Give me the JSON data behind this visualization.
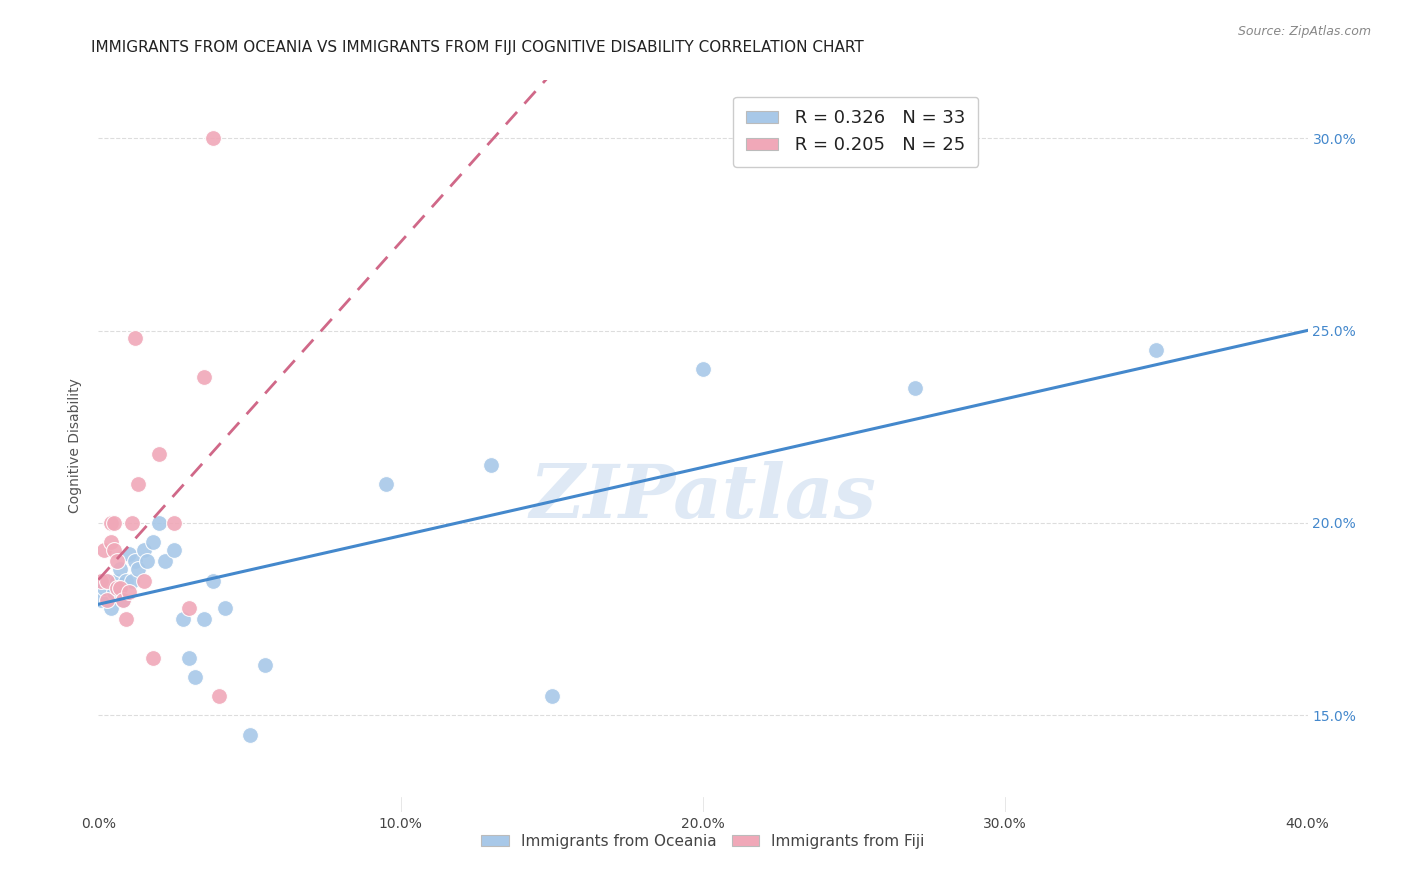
{
  "title": "IMMIGRANTS FROM OCEANIA VS IMMIGRANTS FROM FIJI COGNITIVE DISABILITY CORRELATION CHART",
  "source": "Source: ZipAtlas.com",
  "ylabel": "Cognitive Disability",
  "xlim": [
    0.0,
    0.4
  ],
  "ylim": [
    0.125,
    0.315
  ],
  "yticks": [
    0.15,
    0.2,
    0.25,
    0.3
  ],
  "xticks": [
    0.0,
    0.1,
    0.2,
    0.3,
    0.4
  ],
  "xtick_labels": [
    "0.0%",
    "10.0%",
    "20.0%",
    "30.0%",
    "40.0%"
  ],
  "ytick_labels": [
    "15.0%",
    "20.0%",
    "25.0%",
    "30.0%"
  ],
  "background_color": "#ffffff",
  "grid_color": "#dddddd",
  "oceania_color": "#a8c8e8",
  "fiji_color": "#f0a8b8",
  "oceania_line_color": "#4488cc",
  "fiji_line_color": "#d06888",
  "legend_R_oceania": "R = 0.326",
  "legend_N_oceania": "N = 33",
  "legend_R_fiji": "R = 0.205",
  "legend_N_fiji": "N = 25",
  "oceania_x": [
    0.001,
    0.002,
    0.003,
    0.004,
    0.005,
    0.006,
    0.007,
    0.008,
    0.009,
    0.01,
    0.011,
    0.012,
    0.013,
    0.015,
    0.016,
    0.018,
    0.02,
    0.022,
    0.025,
    0.028,
    0.03,
    0.032,
    0.035,
    0.038,
    0.042,
    0.05,
    0.055,
    0.095,
    0.13,
    0.15,
    0.2,
    0.27,
    0.35
  ],
  "oceania_y": [
    0.18,
    0.183,
    0.185,
    0.178,
    0.182,
    0.185,
    0.188,
    0.18,
    0.185,
    0.192,
    0.185,
    0.19,
    0.188,
    0.193,
    0.19,
    0.195,
    0.2,
    0.19,
    0.193,
    0.175,
    0.165,
    0.16,
    0.175,
    0.185,
    0.178,
    0.145,
    0.163,
    0.21,
    0.215,
    0.155,
    0.24,
    0.235,
    0.245
  ],
  "fiji_x": [
    0.001,
    0.002,
    0.003,
    0.003,
    0.004,
    0.004,
    0.005,
    0.005,
    0.006,
    0.006,
    0.007,
    0.008,
    0.009,
    0.01,
    0.011,
    0.012,
    0.013,
    0.015,
    0.018,
    0.02,
    0.025,
    0.03,
    0.035,
    0.038,
    0.04
  ],
  "fiji_y": [
    0.185,
    0.193,
    0.18,
    0.185,
    0.195,
    0.2,
    0.193,
    0.2,
    0.183,
    0.19,
    0.183,
    0.18,
    0.175,
    0.182,
    0.2,
    0.248,
    0.21,
    0.185,
    0.165,
    0.218,
    0.2,
    0.178,
    0.238,
    0.3,
    0.155
  ],
  "watermark": "ZIPatlas",
  "watermark_color": "#ccddeebb",
  "title_fontsize": 11,
  "axis_label_fontsize": 10,
  "tick_fontsize": 10,
  "legend_fontsize": 13
}
